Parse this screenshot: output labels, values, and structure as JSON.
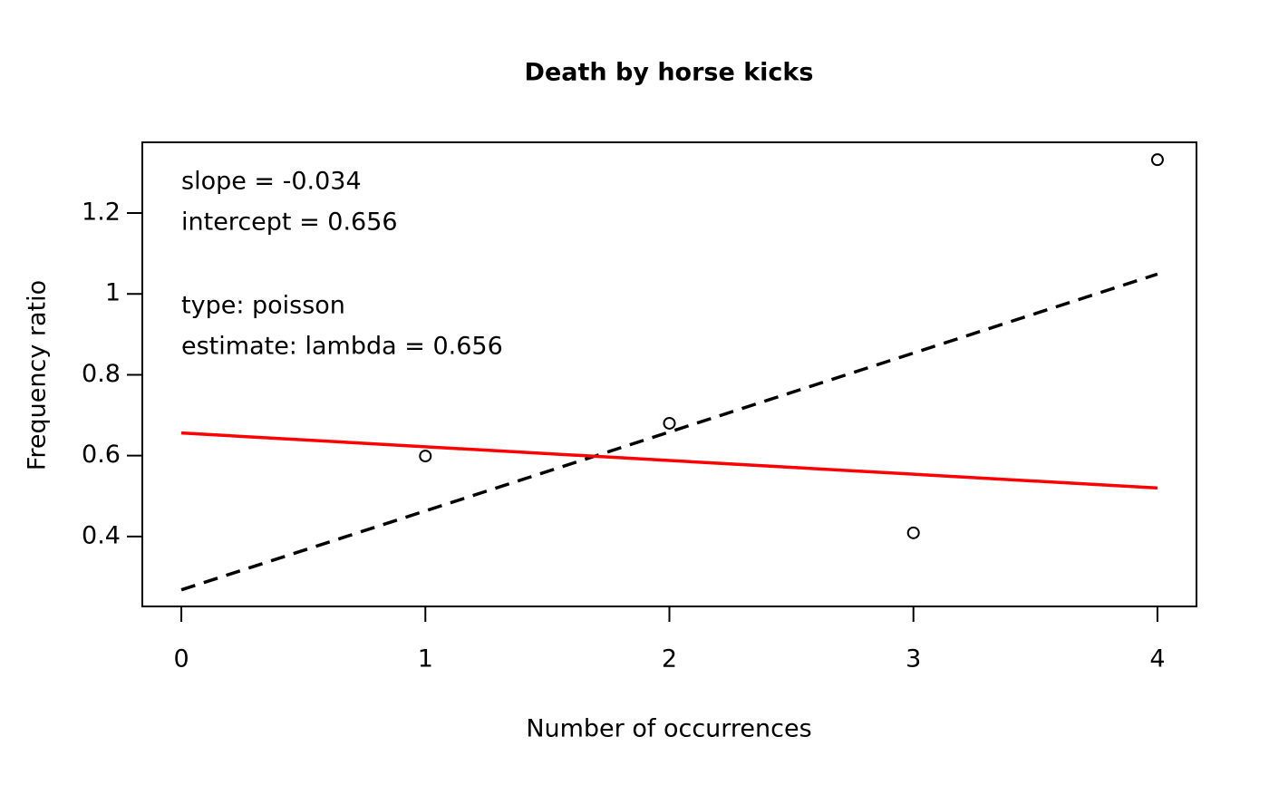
{
  "chart_data": {
    "type": "scatter",
    "title": "Death by horse kicks",
    "x_label": "Number of occurrences",
    "y_label": "Frequency ratio",
    "x": [
      1,
      2,
      3,
      4
    ],
    "values": [
      0.599,
      0.68,
      0.409,
      1.332
    ],
    "color": "#000000",
    "lines": [
      {
        "x": [
          0,
          4
        ],
        "values": [
          0.268,
          1.049
        ],
        "color": "#000000",
        "dashed": true
      },
      {
        "x": [
          0,
          4
        ],
        "values": [
          0.656,
          0.52
        ],
        "color": "#ff0000",
        "dashed": false
      }
    ],
    "annotations": [
      "slope = -0.034",
      "intercept = 0.656",
      "type: poisson",
      "estimate: lambda = 0.656"
    ],
    "xlim": [
      -0.16,
      4.16
    ],
    "ylim": [
      0.227,
      1.375
    ],
    "xticks": [
      0,
      1,
      2,
      3,
      4
    ],
    "yticks": [
      0.4,
      0.6,
      0.8,
      1,
      1.2
    ],
    "grid": false
  }
}
